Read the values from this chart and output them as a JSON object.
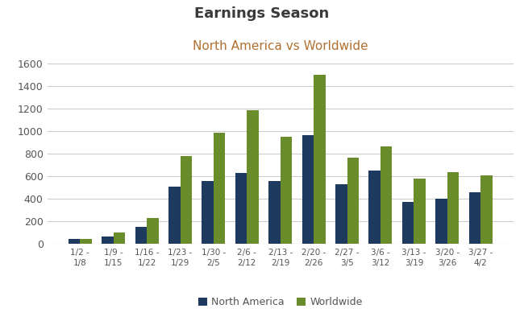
{
  "title": "Earnings Season",
  "subtitle": "North America vs Worldwide",
  "title_color": "#3a3a3a",
  "subtitle_color": "#b07030",
  "categories": [
    "1/2 -\n1/8",
    "1/9 -\n1/15",
    "1/16 -\n1/22",
    "1/23 -\n1/29",
    "1/30 -\n2/5",
    "2/6 -\n2/12",
    "2/13 -\n2/19",
    "2/20 -\n2/26",
    "2/27 -\n3/5",
    "3/6 -\n3/12",
    "3/13 -\n3/19",
    "3/20 -\n3/26",
    "3/27 -\n4/2"
  ],
  "north_america": [
    40,
    63,
    150,
    505,
    553,
    628,
    557,
    960,
    530,
    650,
    372,
    402,
    453
  ],
  "worldwide": [
    45,
    100,
    228,
    775,
    985,
    1185,
    945,
    1495,
    762,
    865,
    577,
    633,
    603
  ],
  "na_color": "#1e3a5f",
  "ww_color": "#6b8c2a",
  "ylim": [
    0,
    1700
  ],
  "yticks": [
    0,
    200,
    400,
    600,
    800,
    1000,
    1200,
    1400,
    1600
  ],
  "grid_color": "#cccccc",
  "background_color": "#ffffff",
  "legend_labels": [
    "North America",
    "Worldwide"
  ],
  "bar_width": 0.35,
  "xlabel_fontsize": 7.5,
  "ylabel_fontsize": 9,
  "title_fontsize": 13,
  "subtitle_fontsize": 11
}
